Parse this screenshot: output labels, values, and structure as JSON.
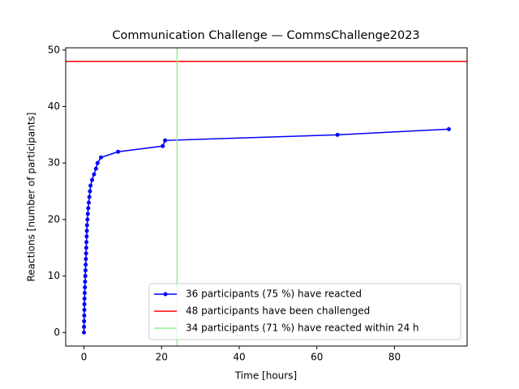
{
  "chart_data": {
    "type": "line",
    "title": "Communication Challenge — CommsChallenge2023",
    "xlabel": "Time [hours]",
    "ylabel": "Reactions [number of participants]",
    "x": [
      0.0,
      0.02,
      0.05,
      0.08,
      0.1,
      0.12,
      0.15,
      0.2,
      0.25,
      0.3,
      0.35,
      0.4,
      0.45,
      0.5,
      0.55,
      0.6,
      0.65,
      0.7,
      0.75,
      0.8,
      0.9,
      1.0,
      1.1,
      1.25,
      1.4,
      1.55,
      1.7,
      2.1,
      2.6,
      3.1,
      3.5,
      4.4,
      8.8,
      20.3,
      20.9,
      65.3,
      94.0
    ],
    "series": [
      {
        "name": "36 participants (75 %) have reacted",
        "color": "#0000ff",
        "values": [
          0,
          1,
          2,
          3,
          4,
          5,
          6,
          7,
          8,
          9,
          10,
          11,
          12,
          13,
          14,
          15,
          16,
          17,
          18,
          19,
          20,
          21,
          22,
          23,
          24,
          25,
          26,
          27,
          28,
          29,
          30,
          31,
          32,
          33,
          34,
          35,
          36
        ]
      }
    ],
    "hlines": [
      {
        "name": "48 participants have been challenged",
        "color": "#ff0000",
        "y": 48
      }
    ],
    "vlines": [
      {
        "name": "34 participants (71 %) have reacted within 24 h",
        "color": "#90ee90",
        "x": 24
      }
    ],
    "xlim": [
      -4.7,
      98.7
    ],
    "ylim": [
      -2.4,
      50.4
    ],
    "xticks": [
      0,
      20,
      40,
      60,
      80
    ],
    "yticks": [
      0,
      10,
      20,
      30,
      40,
      50
    ],
    "grid": false,
    "legend": "lower right"
  }
}
